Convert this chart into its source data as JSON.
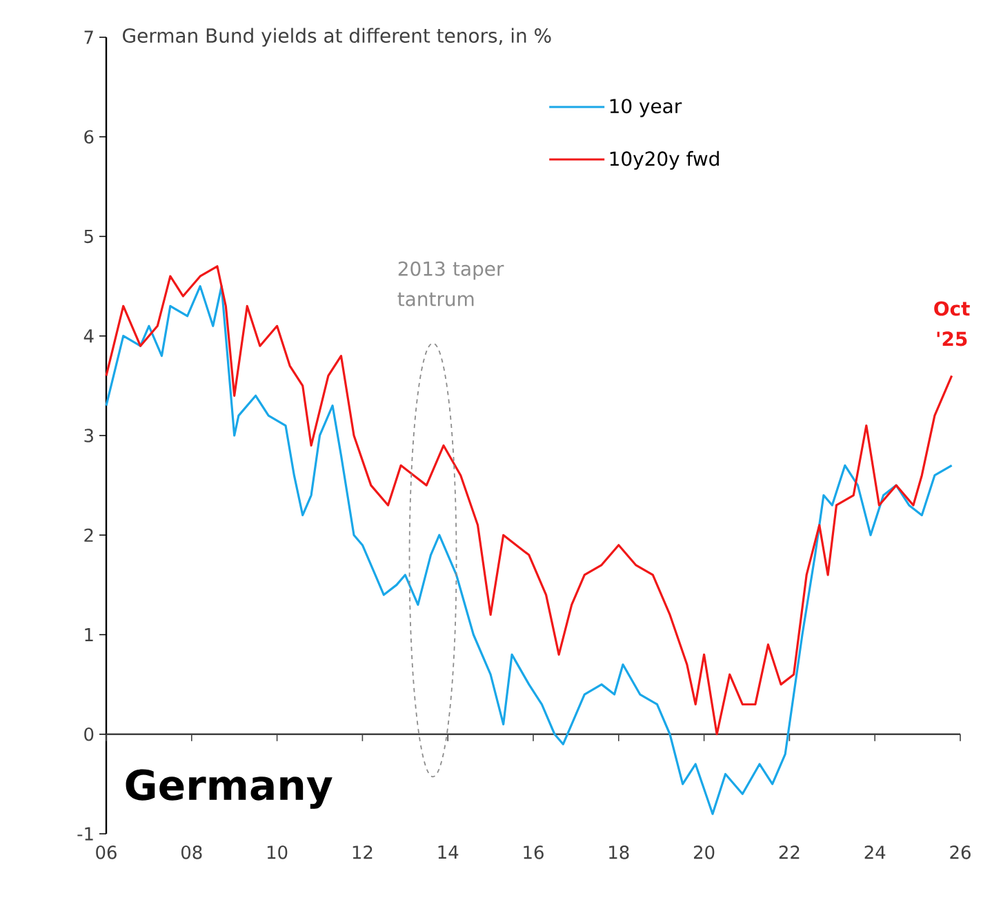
{
  "chart_data": {
    "type": "line",
    "title": "German Bund yields at different tenors, in %",
    "annotations": [
      "2013 taper tantrum",
      "Germany",
      {
        "text": "Oct '25",
        "x": 2025.8,
        "y": 3.6
      }
    ],
    "xlim": [
      2006,
      2026
    ],
    "xticks": [
      {
        "value": 2006,
        "label": "06"
      },
      {
        "value": 2008,
        "label": "08"
      },
      {
        "value": 2010,
        "label": "10"
      },
      {
        "value": 2012,
        "label": "12"
      },
      {
        "value": 2014,
        "label": "14"
      },
      {
        "value": 2016,
        "label": "16"
      },
      {
        "value": 2018,
        "label": "18"
      },
      {
        "value": 2020,
        "label": "20"
      },
      {
        "value": 2022,
        "label": "22"
      },
      {
        "value": 2024,
        "label": "24"
      },
      {
        "value": 2026,
        "label": "26"
      }
    ],
    "ylim": [
      -1,
      7
    ],
    "yticks": [
      -1,
      0,
      1,
      2,
      3,
      4,
      5,
      6,
      7
    ],
    "legend": "top",
    "series": [
      {
        "name": "10 year",
        "color": "#1aa7e8",
        "x": [
          2006.0,
          2006.4,
          2006.8,
          2007.0,
          2007.3,
          2007.5,
          2007.9,
          2008.2,
          2008.5,
          2008.7,
          2009.0,
          2009.1,
          2009.5,
          2009.8,
          2010.2,
          2010.4,
          2010.6,
          2010.8,
          2011.0,
          2011.3,
          2011.5,
          2011.8,
          2012.0,
          2012.3,
          2012.5,
          2012.8,
          2013.0,
          2013.3,
          2013.6,
          2013.8,
          2014.2,
          2014.6,
          2015.0,
          2015.3,
          2015.5,
          2015.9,
          2016.2,
          2016.5,
          2016.7,
          2016.9,
          2017.2,
          2017.6,
          2017.9,
          2018.1,
          2018.5,
          2018.9,
          2019.2,
          2019.5,
          2019.8,
          2020.2,
          2020.5,
          2020.9,
          2021.3,
          2021.6,
          2021.9,
          2022.0,
          2022.3,
          2022.6,
          2022.8,
          2023.0,
          2023.3,
          2023.6,
          2023.9,
          2024.2,
          2024.5,
          2024.8,
          2025.1,
          2025.4,
          2025.8
        ],
        "values": [
          3.3,
          4.0,
          3.9,
          4.1,
          3.8,
          4.3,
          4.2,
          4.5,
          4.1,
          4.5,
          3.0,
          3.2,
          3.4,
          3.2,
          3.1,
          2.6,
          2.2,
          2.4,
          3.0,
          3.3,
          2.8,
          2.0,
          1.9,
          1.6,
          1.4,
          1.5,
          1.6,
          1.3,
          1.8,
          2.0,
          1.6,
          1.0,
          0.6,
          0.1,
          0.8,
          0.5,
          0.3,
          0.0,
          -0.1,
          0.1,
          0.4,
          0.5,
          0.4,
          0.7,
          0.4,
          0.3,
          0.0,
          -0.5,
          -0.3,
          -0.8,
          -0.4,
          -0.6,
          -0.3,
          -0.5,
          -0.2,
          0.1,
          1.0,
          1.8,
          2.4,
          2.3,
          2.7,
          2.5,
          2.0,
          2.4,
          2.5,
          2.3,
          2.2,
          2.6,
          2.7
        ]
      },
      {
        "name": "10y20y fwd",
        "color": "#f01818",
        "x": [
          2006.0,
          2006.4,
          2006.8,
          2007.2,
          2007.5,
          2007.8,
          2008.2,
          2008.6,
          2008.8,
          2009.0,
          2009.3,
          2009.6,
          2010.0,
          2010.3,
          2010.6,
          2010.8,
          2011.2,
          2011.5,
          2011.8,
          2012.2,
          2012.6,
          2012.9,
          2013.2,
          2013.5,
          2013.9,
          2014.3,
          2014.7,
          2015.0,
          2015.3,
          2015.6,
          2015.9,
          2016.3,
          2016.6,
          2016.9,
          2017.2,
          2017.6,
          2018.0,
          2018.4,
          2018.8,
          2019.2,
          2019.6,
          2019.8,
          2020.0,
          2020.3,
          2020.6,
          2020.9,
          2021.2,
          2021.5,
          2021.8,
          2022.1,
          2022.4,
          2022.7,
          2022.9,
          2023.1,
          2023.5,
          2023.8,
          2024.1,
          2024.5,
          2024.9,
          2025.1,
          2025.4,
          2025.8
        ],
        "values": [
          3.6,
          4.3,
          3.9,
          4.1,
          4.6,
          4.4,
          4.6,
          4.7,
          4.3,
          3.4,
          4.3,
          3.9,
          4.1,
          3.7,
          3.5,
          2.9,
          3.6,
          3.8,
          3.0,
          2.5,
          2.3,
          2.7,
          2.6,
          2.5,
          2.9,
          2.6,
          2.1,
          1.2,
          2.0,
          1.9,
          1.8,
          1.4,
          0.8,
          1.3,
          1.6,
          1.7,
          1.9,
          1.7,
          1.6,
          1.2,
          0.7,
          0.3,
          0.8,
          0.0,
          0.6,
          0.3,
          0.3,
          0.9,
          0.5,
          0.6,
          1.6,
          2.1,
          1.6,
          2.3,
          2.4,
          3.1,
          2.3,
          2.5,
          2.3,
          2.6,
          3.2,
          3.6
        ]
      }
    ]
  }
}
